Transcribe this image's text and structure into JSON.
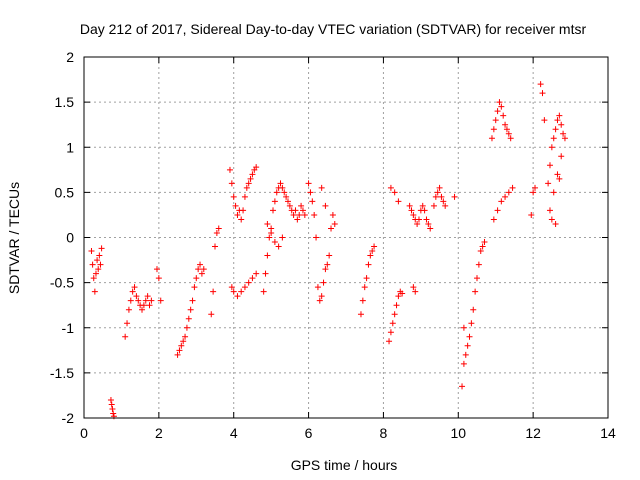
{
  "chart_data": {
    "type": "scatter",
    "title": "Day 212 of 2017, Sidereal Day-to-day VTEC variation (SDTVAR) for receiver mtsr",
    "xlabel": "GPS time / hours",
    "ylabel": "SDTVAR / TECUs",
    "xlim": [
      0,
      14
    ],
    "ylim": [
      -2,
      2
    ],
    "xticks": [
      0,
      2,
      4,
      6,
      8,
      10,
      12,
      14
    ],
    "xtick_labels": [
      "0",
      "2",
      "4",
      "6",
      "8",
      "10",
      "12",
      "14"
    ],
    "yticks": [
      -2,
      -1.5,
      -1,
      -0.5,
      0,
      0.5,
      1,
      1.5,
      2
    ],
    "ytick_labels": [
      "-2",
      "-1.5",
      "-1",
      "-0.5",
      "0",
      "0.5",
      "1",
      "1.5",
      "2"
    ],
    "grid": true,
    "marker": "+",
    "color": "#ff0000",
    "series": [
      {
        "name": "SDTVAR",
        "x": [
          0.2,
          0.23,
          0.26,
          0.29,
          0.32,
          0.35,
          0.38,
          0.41,
          0.44,
          0.47,
          0.72,
          0.74,
          0.76,
          0.78,
          0.8,
          1.1,
          1.15,
          1.2,
          1.25,
          1.3,
          1.35,
          1.4,
          1.45,
          1.5,
          1.55,
          1.6,
          1.65,
          1.7,
          1.75,
          1.8,
          1.95,
          2.0,
          2.05,
          2.5,
          2.55,
          2.6,
          2.65,
          2.7,
          2.75,
          2.8,
          2.85,
          2.9,
          2.95,
          3.0,
          3.05,
          3.1,
          3.15,
          3.2,
          3.4,
          3.45,
          3.5,
          3.55,
          3.6,
          3.9,
          3.95,
          4.0,
          4.05,
          4.1,
          4.15,
          4.2,
          4.25,
          4.3,
          4.35,
          4.4,
          4.45,
          4.5,
          4.55,
          4.6,
          3.95,
          4.0,
          4.1,
          4.2,
          4.3,
          4.4,
          4.5,
          4.6,
          4.8,
          4.85,
          4.9,
          4.95,
          5.0,
          5.05,
          5.1,
          5.15,
          5.2,
          5.25,
          5.3,
          5.35,
          5.4,
          5.45,
          5.5,
          5.55,
          5.6,
          5.65,
          5.7,
          5.75,
          5.8,
          5.85,
          5.9,
          4.9,
          5.0,
          5.1,
          5.2,
          5.3,
          6.0,
          6.05,
          6.1,
          6.15,
          6.2,
          6.25,
          6.3,
          6.35,
          6.4,
          6.45,
          6.5,
          6.55,
          6.6,
          6.65,
          6.7,
          6.35,
          6.45,
          7.4,
          7.45,
          7.5,
          7.55,
          7.6,
          7.65,
          7.7,
          7.75,
          8.15,
          8.2,
          8.25,
          8.3,
          8.35,
          8.4,
          8.45,
          8.5,
          8.2,
          8.3,
          8.4,
          8.7,
          8.75,
          8.8,
          8.85,
          8.9,
          8.95,
          9.0,
          9.05,
          9.1,
          9.15,
          9.2,
          9.25,
          8.8,
          8.85,
          9.35,
          9.4,
          9.45,
          9.5,
          9.55,
          9.6,
          9.65,
          9.9,
          10.1,
          10.15,
          10.2,
          10.25,
          10.3,
          10.35,
          10.4,
          10.45,
          10.5,
          10.55,
          10.6,
          10.65,
          10.7,
          10.15,
          10.9,
          10.95,
          11.0,
          11.05,
          11.1,
          11.15,
          11.2,
          11.25,
          11.3,
          11.35,
          11.4,
          10.95,
          11.05,
          11.15,
          11.25,
          11.35,
          11.45,
          11.95,
          12.0,
          12.05,
          12.2,
          12.25,
          12.3,
          12.4,
          12.45,
          12.5,
          12.55,
          12.6,
          12.65,
          12.7,
          12.75,
          12.8,
          12.85,
          12.45,
          12.55,
          12.65,
          12.75,
          12.5,
          12.6,
          12.7
        ],
        "y": [
          -0.15,
          -0.3,
          -0.45,
          -0.6,
          -0.4,
          -0.25,
          -0.35,
          -0.2,
          -0.3,
          -0.12,
          -1.8,
          -1.85,
          -1.9,
          -1.95,
          -1.98,
          -1.1,
          -0.95,
          -0.8,
          -0.7,
          -0.6,
          -0.55,
          -0.65,
          -0.7,
          -0.75,
          -0.8,
          -0.75,
          -0.7,
          -0.65,
          -0.75,
          -0.7,
          -0.35,
          -0.45,
          -0.7,
          -1.3,
          -1.25,
          -1.2,
          -1.15,
          -1.1,
          -1.0,
          -0.9,
          -0.8,
          -0.7,
          -0.55,
          -0.45,
          -0.35,
          -0.3,
          -0.4,
          -0.35,
          -0.85,
          -0.6,
          -0.1,
          0.05,
          0.1,
          0.75,
          0.6,
          0.45,
          0.35,
          0.25,
          0.3,
          0.2,
          0.3,
          0.45,
          0.55,
          0.6,
          0.65,
          0.7,
          0.75,
          0.78,
          -0.55,
          -0.6,
          -0.65,
          -0.6,
          -0.55,
          -0.5,
          -0.45,
          -0.4,
          -0.6,
          -0.4,
          -0.2,
          0.0,
          0.1,
          0.3,
          0.4,
          0.5,
          0.55,
          0.6,
          0.55,
          0.5,
          0.45,
          0.4,
          0.35,
          0.3,
          0.25,
          0.3,
          0.2,
          0.25,
          0.35,
          0.3,
          0.25,
          0.15,
          0.05,
          -0.05,
          -0.1,
          0.0,
          0.6,
          0.5,
          0.4,
          0.25,
          0.0,
          -0.55,
          -0.7,
          -0.65,
          -0.5,
          -0.35,
          -0.3,
          -0.2,
          0.1,
          0.25,
          0.15,
          0.55,
          0.35,
          -0.85,
          -0.7,
          -0.55,
          -0.45,
          -0.3,
          -0.2,
          -0.15,
          -0.1,
          -1.15,
          -1.05,
          -0.95,
          -0.85,
          -0.75,
          -0.65,
          -0.6,
          -0.62,
          0.55,
          0.5,
          0.4,
          0.35,
          0.3,
          0.25,
          0.2,
          0.15,
          0.2,
          0.3,
          0.35,
          0.3,
          0.2,
          0.15,
          0.1,
          -0.55,
          -0.6,
          0.35,
          0.45,
          0.5,
          0.55,
          0.45,
          0.4,
          0.35,
          0.45,
          -1.65,
          -1.4,
          -1.3,
          -1.2,
          -1.1,
          -0.95,
          -0.8,
          -0.6,
          -0.45,
          -0.3,
          -0.15,
          -0.1,
          -0.05,
          -1.0,
          1.1,
          1.2,
          1.3,
          1.4,
          1.5,
          1.45,
          1.35,
          1.25,
          1.2,
          1.15,
          1.1,
          0.2,
          0.3,
          0.4,
          0.45,
          0.5,
          0.55,
          0.25,
          0.5,
          0.55,
          1.7,
          1.6,
          1.3,
          0.6,
          0.8,
          1.0,
          1.1,
          1.2,
          1.3,
          1.35,
          1.25,
          1.15,
          1.1,
          0.3,
          0.5,
          0.7,
          0.9,
          0.2,
          0.15,
          0.65
        ],
        "color": "#ff0000"
      }
    ]
  }
}
